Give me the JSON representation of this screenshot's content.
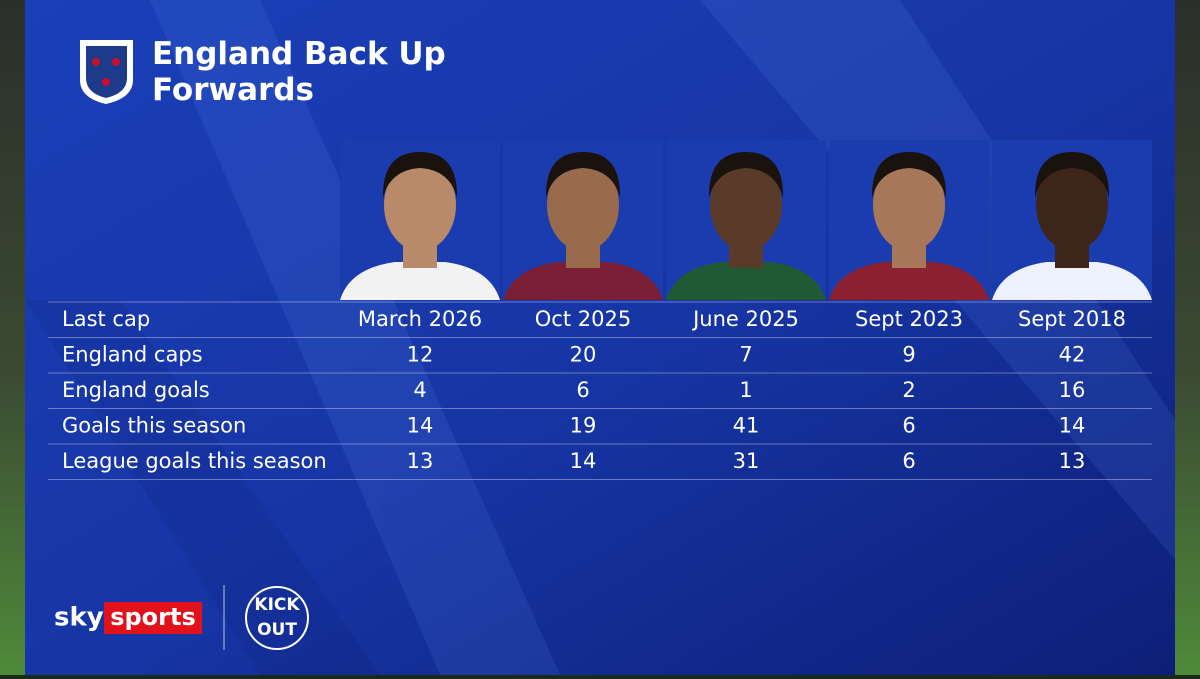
{
  "header": {
    "title": "England Back Up Forwards"
  },
  "table": {
    "columns": [
      "March 2026",
      "Oct 2025",
      "June 2025",
      "Sept 2023",
      "Sept 2018"
    ],
    "row_label_header": "Last cap",
    "rows": [
      {
        "label": "England caps",
        "values": [
          12,
          20,
          7,
          9,
          42
        ]
      },
      {
        "label": "England goals",
        "values": [
          4,
          6,
          1,
          2,
          16
        ]
      },
      {
        "label": "Goals this season",
        "values": [
          14,
          19,
          41,
          6,
          14
        ]
      },
      {
        "label": "League goals this season",
        "values": [
          13,
          14,
          31,
          6,
          13
        ]
      }
    ]
  },
  "footer": {
    "sky": "sky",
    "sports": "sports",
    "kick": "KICK",
    "out": "OUT"
  }
}
